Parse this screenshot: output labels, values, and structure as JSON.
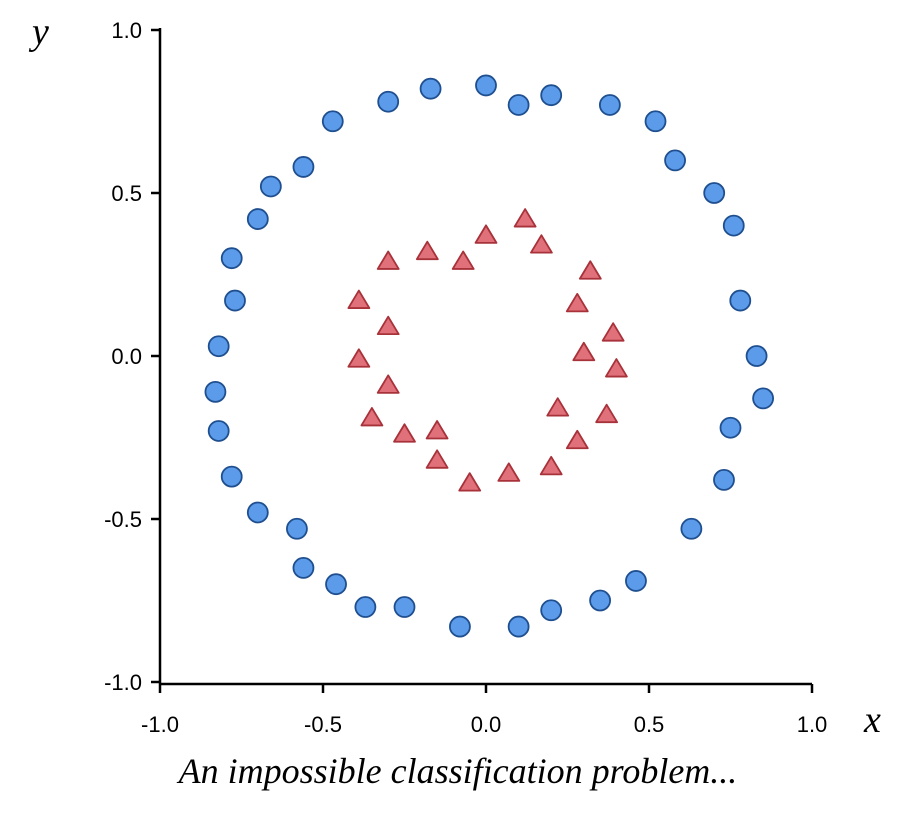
{
  "caption": "An impossible classification problem...",
  "chart_data": {
    "type": "scatter",
    "title": "",
    "xlabel": "x",
    "ylabel": "y",
    "xlim": [
      -1.0,
      1.0
    ],
    "ylim": [
      -1.0,
      1.0
    ],
    "xticks": [
      "-1.0",
      "-0.5",
      "0.0",
      "0.5",
      "1.0"
    ],
    "yticks": [
      "-1.0",
      "-0.5",
      "0.0",
      "0.5",
      "1.0"
    ],
    "grid": false,
    "legend": "none",
    "series": [
      {
        "marker": "circle",
        "color": "#5b9bea",
        "edge_color": "#1f4f8f",
        "points": [
          [
            0.0,
            0.83
          ],
          [
            0.1,
            0.77
          ],
          [
            0.2,
            0.8
          ],
          [
            0.38,
            0.77
          ],
          [
            0.52,
            0.72
          ],
          [
            0.58,
            0.6
          ],
          [
            0.7,
            0.5
          ],
          [
            0.76,
            0.4
          ],
          [
            0.78,
            0.17
          ],
          [
            0.83,
            0.0
          ],
          [
            0.85,
            -0.13
          ],
          [
            0.75,
            -0.22
          ],
          [
            0.73,
            -0.38
          ],
          [
            0.63,
            -0.53
          ],
          [
            0.46,
            -0.69
          ],
          [
            0.35,
            -0.75
          ],
          [
            0.2,
            -0.78
          ],
          [
            0.1,
            -0.83
          ],
          [
            -0.08,
            -0.83
          ],
          [
            -0.25,
            -0.77
          ],
          [
            -0.37,
            -0.77
          ],
          [
            -0.46,
            -0.7
          ],
          [
            -0.56,
            -0.65
          ],
          [
            -0.58,
            -0.53
          ],
          [
            -0.7,
            -0.48
          ],
          [
            -0.78,
            -0.37
          ],
          [
            -0.82,
            -0.23
          ],
          [
            -0.83,
            -0.11
          ],
          [
            -0.82,
            0.03
          ],
          [
            -0.77,
            0.17
          ],
          [
            -0.78,
            0.3
          ],
          [
            -0.7,
            0.42
          ],
          [
            -0.66,
            0.52
          ],
          [
            -0.56,
            0.58
          ],
          [
            -0.47,
            0.72
          ],
          [
            -0.3,
            0.78
          ],
          [
            -0.17,
            0.82
          ]
        ]
      },
      {
        "marker": "triangle",
        "color": "#e0707a",
        "edge_color": "#a8323a",
        "points": [
          [
            0.12,
            0.42
          ],
          [
            0.17,
            0.34
          ],
          [
            0.0,
            0.37
          ],
          [
            -0.18,
            0.32
          ],
          [
            -0.07,
            0.29
          ],
          [
            -0.3,
            0.29
          ],
          [
            0.32,
            0.26
          ],
          [
            -0.39,
            0.17
          ],
          [
            0.28,
            0.16
          ],
          [
            -0.3,
            0.09
          ],
          [
            0.39,
            0.07
          ],
          [
            0.3,
            0.01
          ],
          [
            -0.39,
            -0.01
          ],
          [
            0.4,
            -0.04
          ],
          [
            -0.3,
            -0.09
          ],
          [
            0.22,
            -0.16
          ],
          [
            0.37,
            -0.18
          ],
          [
            -0.35,
            -0.19
          ],
          [
            -0.15,
            -0.23
          ],
          [
            -0.25,
            -0.24
          ],
          [
            0.28,
            -0.26
          ],
          [
            -0.15,
            -0.32
          ],
          [
            0.2,
            -0.34
          ],
          [
            0.07,
            -0.36
          ],
          [
            -0.05,
            -0.39
          ]
        ]
      }
    ]
  }
}
